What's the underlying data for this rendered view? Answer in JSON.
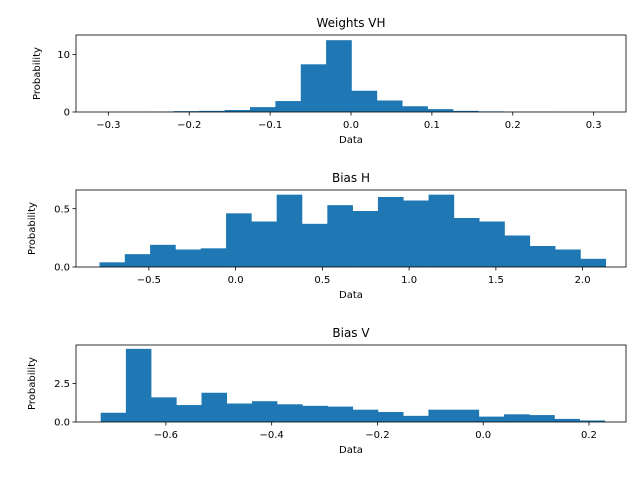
{
  "chart_data": [
    {
      "type": "bar",
      "title": "Weights VH",
      "xlabel": "Data",
      "ylabel": "Probability",
      "xlim": [
        -0.34,
        0.34
      ],
      "ylim": [
        0,
        13.4
      ],
      "xticks": [
        -0.3,
        -0.2,
        -0.1,
        0.0,
        0.1,
        0.2,
        0.3
      ],
      "xtick_labels": [
        "−0.3",
        "−0.2",
        "−0.1",
        "0.0",
        "0.1",
        "0.2",
        "0.3"
      ],
      "yticks": [
        0,
        10
      ],
      "ytick_labels": [
        "0",
        "10"
      ],
      "color": "#1f77b4",
      "bin_edges": [
        -0.3131,
        -0.2817,
        -0.2504,
        -0.219,
        -0.1876,
        -0.1562,
        -0.1249,
        -0.0935,
        -0.0621,
        -0.0308,
        0.0006,
        0.032,
        0.0633,
        0.0947,
        0.1261,
        0.1575,
        0.1888,
        0.2202,
        0.2516,
        0.2829,
        0.3143
      ],
      "values": [
        0.02,
        0.03,
        0.05,
        0.15,
        0.2,
        0.35,
        0.85,
        1.9,
        8.3,
        12.5,
        3.7,
        2.0,
        1.0,
        0.5,
        0.2,
        0.1,
        0.05,
        0.04,
        0.02,
        0.02
      ]
    },
    {
      "type": "bar",
      "title": "Bias H",
      "xlabel": "Data",
      "ylabel": "Probability",
      "xlim": [
        -0.92,
        2.25
      ],
      "ylim": [
        0,
        0.66
      ],
      "xticks": [
        -0.5,
        0.0,
        0.5,
        1.0,
        1.5,
        2.0
      ],
      "xtick_labels": [
        "−0.5",
        "0.0",
        "0.5",
        "1.0",
        "1.5",
        "2.0"
      ],
      "yticks": [
        0.0,
        0.5
      ],
      "ytick_labels": [
        "0.0",
        "0.5"
      ],
      "color": "#1f77b4",
      "bin_edges": [
        -0.7846,
        -0.6387,
        -0.4928,
        -0.3469,
        -0.201,
        -0.0551,
        0.0908,
        0.2367,
        0.3826,
        0.5285,
        0.6744,
        0.8203,
        0.9662,
        1.1121,
        1.258,
        1.4039,
        1.5498,
        1.6957,
        1.8416,
        1.9875,
        2.1334
      ],
      "values": [
        0.04,
        0.11,
        0.19,
        0.15,
        0.16,
        0.46,
        0.39,
        0.62,
        0.37,
        0.53,
        0.48,
        0.6,
        0.57,
        0.62,
        0.42,
        0.39,
        0.27,
        0.18,
        0.15,
        0.07
      ]
    },
    {
      "type": "bar",
      "title": "Bias V",
      "xlabel": "Data",
      "ylabel": "Probability",
      "xlim": [
        -0.77,
        0.27
      ],
      "ylim": [
        0,
        5.0
      ],
      "xticks": [
        -0.6,
        -0.4,
        -0.2,
        0.0,
        0.2
      ],
      "xtick_labels": [
        "−0.6",
        "−0.4",
        "−0.2",
        "0.0",
        "0.2"
      ],
      "yticks": [
        0.0,
        2.5
      ],
      "ytick_labels": [
        "0.0",
        "2.5"
      ],
      "color": "#1f77b4",
      "bin_edges": [
        -0.7233,
        -0.6757,
        -0.628,
        -0.5803,
        -0.5327,
        -0.485,
        -0.4373,
        -0.3897,
        -0.342,
        -0.2943,
        -0.2467,
        -0.199,
        -0.1513,
        -0.1036,
        -0.056,
        -0.0083,
        0.0394,
        0.087,
        0.1347,
        0.1824,
        0.23
      ],
      "values": [
        0.6,
        4.75,
        1.6,
        1.1,
        1.9,
        1.2,
        1.35,
        1.15,
        1.05,
        1.0,
        0.8,
        0.65,
        0.4,
        0.8,
        0.8,
        0.35,
        0.5,
        0.45,
        0.2,
        0.1
      ]
    }
  ]
}
